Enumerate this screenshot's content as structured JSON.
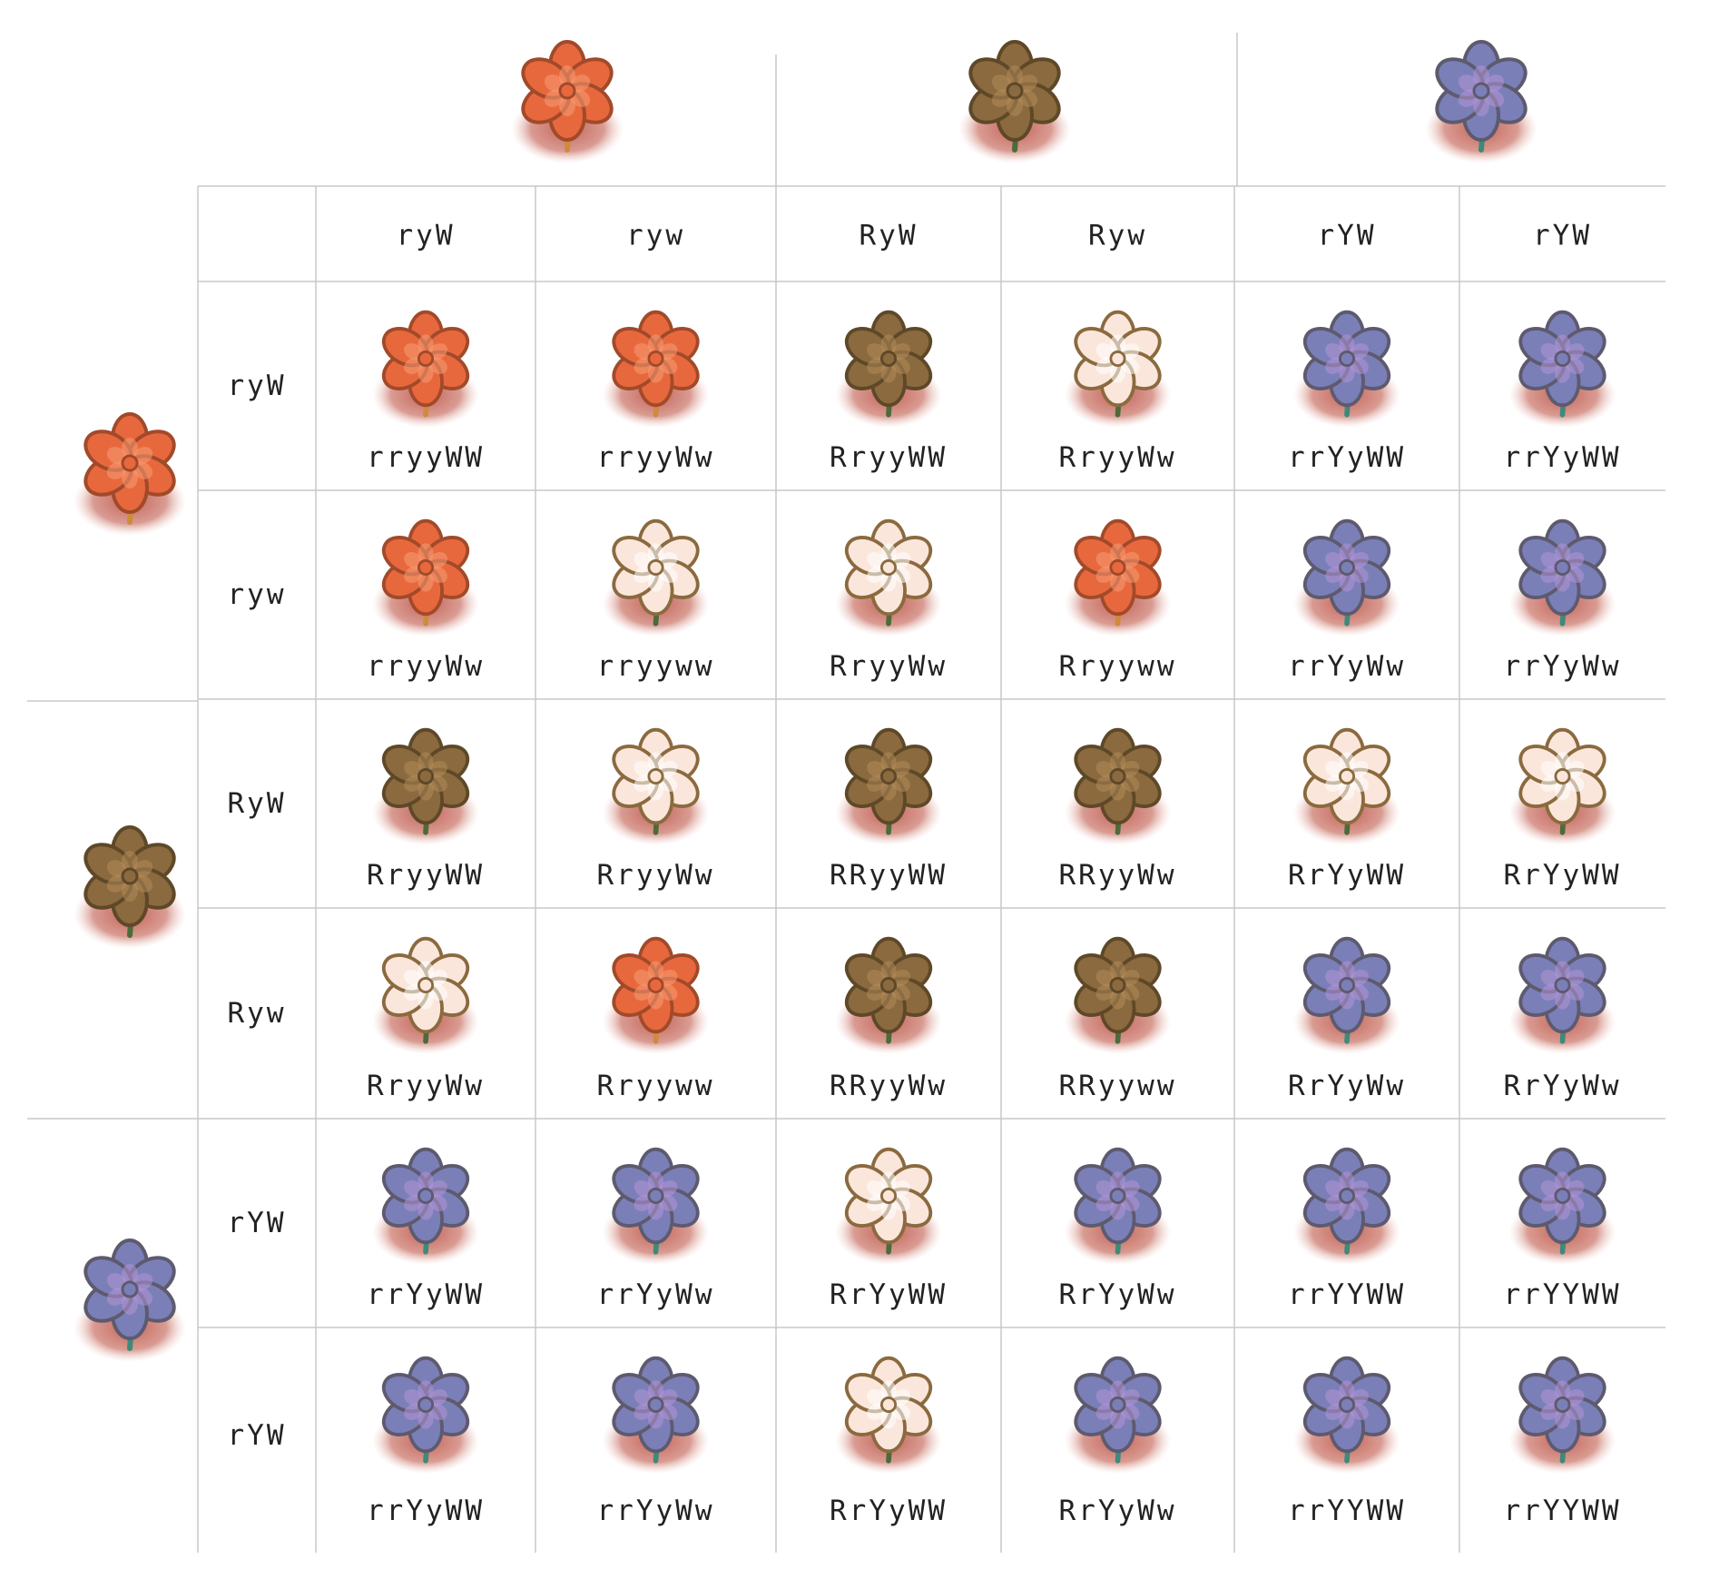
{
  "palette": {
    "red": {
      "petal": "#e8683e",
      "petal_hi": "#f59a72",
      "outline": "#a14a2a",
      "stem": "#d08a3c"
    },
    "brown": {
      "petal": "#8a6a3e",
      "petal_hi": "#b38a5a",
      "outline": "#5e4828",
      "stem": "#4a6b3a"
    },
    "purple": {
      "petal": "#7a7fb8",
      "petal_hi": "#b294d6",
      "outline": "#5e5a6e",
      "stem": "#3e8a7a"
    },
    "pale": {
      "petal": "#fbe6dc",
      "petal_hi": "#ffffff",
      "outline": "#8a6a3e",
      "stem": "#4a6b3a"
    },
    "shadow": "#c0594a",
    "grid": "#c8c8c8"
  },
  "parents_top": [
    {
      "name": "parent-flower-red",
      "color": "red"
    },
    {
      "name": "parent-flower-brown",
      "color": "brown"
    },
    {
      "name": "parent-flower-purple",
      "color": "purple"
    }
  ],
  "parents_left": [
    {
      "name": "parent-flower-red",
      "color": "red"
    },
    {
      "name": "parent-flower-brown",
      "color": "brown"
    },
    {
      "name": "parent-flower-purple",
      "color": "purple"
    }
  ],
  "col_gametes": [
    "ryW",
    "ryw",
    "RyW",
    "Ryw",
    "rYW",
    "rYW"
  ],
  "row_gametes": [
    "ryW",
    "ryw",
    "RyW",
    "Ryw",
    "rYW",
    "rYW"
  ],
  "cells": [
    [
      {
        "g": "rryyWW",
        "c": "red"
      },
      {
        "g": "rryyWw",
        "c": "red"
      },
      {
        "g": "RryyWW",
        "c": "brown"
      },
      {
        "g": "RryyWw",
        "c": "pale"
      },
      {
        "g": "rrYyWW",
        "c": "purple"
      },
      {
        "g": "rrYyWW",
        "c": "purple"
      }
    ],
    [
      {
        "g": "rryyWw",
        "c": "red"
      },
      {
        "g": "rryyww",
        "c": "pale"
      },
      {
        "g": "RryyWw",
        "c": "pale"
      },
      {
        "g": "Rryyww",
        "c": "red"
      },
      {
        "g": "rrYyWw",
        "c": "purple"
      },
      {
        "g": "rrYyWw",
        "c": "purple"
      }
    ],
    [
      {
        "g": "RryyWW",
        "c": "brown"
      },
      {
        "g": "RryyWw",
        "c": "pale"
      },
      {
        "g": "RRyyWW",
        "c": "brown"
      },
      {
        "g": "RRyyWw",
        "c": "brown"
      },
      {
        "g": "RrYyWW",
        "c": "pale"
      },
      {
        "g": "RrYyWW",
        "c": "pale"
      }
    ],
    [
      {
        "g": "RryyWw",
        "c": "pale"
      },
      {
        "g": "Rryyww",
        "c": "red"
      },
      {
        "g": "RRyyWw",
        "c": "brown"
      },
      {
        "g": "RRyyww",
        "c": "brown"
      },
      {
        "g": "RrYyWw",
        "c": "purple"
      },
      {
        "g": "RrYyWw",
        "c": "purple"
      }
    ],
    [
      {
        "g": "rrYyWW",
        "c": "purple"
      },
      {
        "g": "rrYyWw",
        "c": "purple"
      },
      {
        "g": "RrYyWW",
        "c": "pale"
      },
      {
        "g": "RrYyWw",
        "c": "purple"
      },
      {
        "g": "rrYYWW",
        "c": "purple"
      },
      {
        "g": "rrYYWW",
        "c": "purple"
      }
    ],
    [
      {
        "g": "rrYyWW",
        "c": "purple"
      },
      {
        "g": "rrYyWw",
        "c": "purple"
      },
      {
        "g": "RrYyWW",
        "c": "pale"
      },
      {
        "g": "RrYyWw",
        "c": "purple"
      },
      {
        "g": "rrYYWW",
        "c": "purple"
      },
      {
        "g": "rrYYWW",
        "c": "purple"
      }
    ]
  ]
}
